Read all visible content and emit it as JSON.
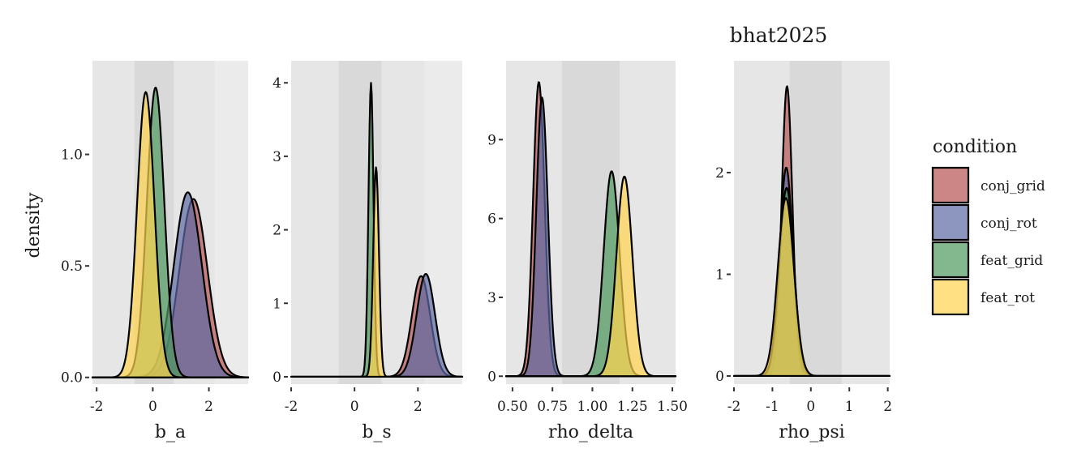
{
  "figure": {
    "title": "bhat2025",
    "ylabel": "density"
  },
  "legend": {
    "title": "condition",
    "items": [
      {
        "label": "conj_grid",
        "color": "#b65353"
      },
      {
        "label": "conj_rot",
        "color": "#5d6aa3"
      },
      {
        "label": "feat_grid",
        "color": "#4f9a5e"
      },
      {
        "label": "feat_rot",
        "color": "#ffd44e"
      }
    ]
  },
  "chart_data": [
    {
      "type": "area",
      "xlabel": "b_a",
      "ylabel": "density",
      "xlim": [
        -2.15,
        3.4
      ],
      "ylim": [
        -0.03,
        1.42
      ],
      "xticks": [
        -2,
        0,
        2
      ],
      "yticks": [
        0.0,
        0.5,
        1.0
      ],
      "ytick_labels": [
        "0.0",
        "0.5",
        "1.0"
      ],
      "bands": [
        [
          -2.15,
          2.2
        ],
        [
          -0.65,
          0.75
        ]
      ],
      "series": [
        {
          "name": "conj_grid",
          "peaks": [
            {
              "mu": 1.45,
              "sigma": 0.5,
              "h": 0.8
            }
          ]
        },
        {
          "name": "conj_rot",
          "peaks": [
            {
              "mu": 1.25,
              "sigma": 0.5,
              "h": 0.83
            }
          ]
        },
        {
          "name": "feat_grid",
          "peaks": [
            {
              "mu": 0.1,
              "sigma": 0.31,
              "h": 1.3
            }
          ]
        },
        {
          "name": "feat_rot",
          "peaks": [
            {
              "mu": -0.25,
              "sigma": 0.31,
              "h": 1.28
            }
          ]
        }
      ]
    },
    {
      "type": "area",
      "xlabel": "b_s",
      "ylabel": "",
      "xlim": [
        -2.0,
        3.4
      ],
      "ylim": [
        -0.1,
        4.3
      ],
      "xticks": [
        -2,
        0,
        2
      ],
      "yticks": [
        0,
        1,
        2,
        3,
        4
      ],
      "ytick_labels": [
        "0",
        "1",
        "2",
        "3",
        "4"
      ],
      "bands": [
        [
          -2.0,
          2.2
        ],
        [
          -0.5,
          0.85
        ]
      ],
      "series": [
        {
          "name": "conj_grid",
          "peaks": [
            {
              "mu": 2.1,
              "sigma": 0.29,
              "h": 1.37
            }
          ]
        },
        {
          "name": "conj_rot",
          "peaks": [
            {
              "mu": 2.25,
              "sigma": 0.29,
              "h": 1.4
            }
          ]
        },
        {
          "name": "feat_grid",
          "peaks": [
            {
              "mu": 0.52,
              "sigma": 0.08,
              "h": 4.0
            }
          ]
        },
        {
          "name": "feat_rot",
          "peaks": [
            {
              "mu": 0.68,
              "sigma": 0.09,
              "h": 2.85
            }
          ]
        }
      ]
    },
    {
      "type": "area",
      "xlabel": "rho_delta",
      "ylabel": "",
      "xlim": [
        0.46,
        1.52
      ],
      "ylim": [
        -0.3,
        12.0
      ],
      "xticks": [
        0.5,
        0.75,
        1.0,
        1.25,
        1.5
      ],
      "yticks": [
        0,
        3,
        6,
        9
      ],
      "ytick_labels": [
        "0",
        "3",
        "6",
        "9"
      ],
      "xtick_labels": [
        "0.50",
        "0.75",
        "1.00",
        "1.25",
        "1.50"
      ],
      "bands": [
        [
          0.46,
          1.52
        ],
        [
          0.81,
          1.17
        ]
      ],
      "series": [
        {
          "name": "conj_grid",
          "peaks": [
            {
              "mu": 0.665,
              "sigma": 0.036,
              "h": 11.2
            }
          ]
        },
        {
          "name": "conj_rot",
          "peaks": [
            {
              "mu": 0.685,
              "sigma": 0.036,
              "h": 10.6
            }
          ]
        },
        {
          "name": "feat_grid",
          "peaks": [
            {
              "mu": 1.12,
              "sigma": 0.05,
              "h": 7.8
            }
          ]
        },
        {
          "name": "feat_rot",
          "peaks": [
            {
              "mu": 1.2,
              "sigma": 0.05,
              "h": 7.6
            }
          ]
        }
      ]
    },
    {
      "type": "area",
      "xlabel": "rho_psi",
      "ylabel": "",
      "xlim": [
        -2.0,
        2.05
      ],
      "ylim": [
        -0.08,
        3.1
      ],
      "xticks": [
        -2,
        -1,
        0,
        1,
        2
      ],
      "yticks": [
        0,
        1,
        2
      ],
      "ytick_labels": [
        "0",
        "1",
        "2"
      ],
      "bands": [
        [
          -2.0,
          2.05
        ],
        [
          -0.55,
          0.8
        ]
      ],
      "series": [
        {
          "name": "conj_grid",
          "peaks": [
            {
              "mu": -0.62,
              "sigma": 0.14,
              "h": 2.85
            }
          ]
        },
        {
          "name": "conj_rot",
          "peaks": [
            {
              "mu": -0.64,
              "sigma": 0.17,
              "h": 2.05
            }
          ]
        },
        {
          "name": "feat_grid",
          "peaks": [
            {
              "mu": -0.63,
              "sigma": 0.19,
              "h": 1.85
            }
          ]
        },
        {
          "name": "feat_rot",
          "peaks": [
            {
              "mu": -0.65,
              "sigma": 0.21,
              "h": 1.75
            }
          ]
        }
      ]
    }
  ]
}
